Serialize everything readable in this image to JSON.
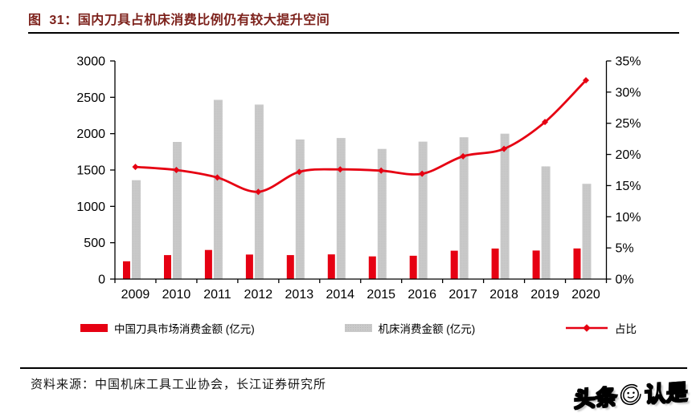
{
  "figure": {
    "caption": "图  31：国内刀具占机床消费比例仍有较大提升空间",
    "source": "资料来源：中国机床工具工业协会，长江证券研究所"
  },
  "watermark": {
    "left": "头条",
    "right": "认是",
    "face_icon": "smiley-face-in-swirl"
  },
  "colors": {
    "accent_red": "#e60012",
    "bar_gray": "#c9c9c9",
    "caption_red": "#7d221c",
    "axis": "#000000"
  },
  "chart_data": {
    "type": "bar",
    "subtype": "clustered-bars-with-line",
    "title": "国内刀具占机床消费比例仍有较大提升空间",
    "categories": [
      "2009",
      "2010",
      "2011",
      "2012",
      "2013",
      "2014",
      "2015",
      "2016",
      "2017",
      "2018",
      "2019",
      "2020"
    ],
    "series": [
      {
        "name": "中国刀具市场消费金额 (亿元)",
        "type": "bar",
        "axis": "left",
        "color": "#e60012",
        "values": [
          245,
          330,
          400,
          337,
          330,
          340,
          312,
          321,
          390,
          420,
          393,
          421
        ]
      },
      {
        "name": "机床消费金额 (亿元)",
        "type": "bar",
        "axis": "left",
        "color": "#c9c9c9",
        "values": [
          1360,
          1886,
          2465,
          2400,
          1920,
          1940,
          1790,
          1890,
          1950,
          2000,
          1550,
          1310
        ]
      },
      {
        "name": "占比",
        "type": "line",
        "axis": "right",
        "color": "#e60012",
        "marker": "diamond",
        "values": [
          18.0,
          17.5,
          16.3,
          14.0,
          17.2,
          17.6,
          17.4,
          16.9,
          19.7,
          20.9,
          25.2,
          31.9
        ]
      }
    ],
    "left_axis": {
      "min": 0,
      "max": 3000,
      "step": 500,
      "tick_labels": [
        "0",
        "500",
        "1000",
        "1500",
        "2000",
        "2500",
        "3000"
      ]
    },
    "right_axis": {
      "min": 0,
      "max": 35,
      "step": 5,
      "unit": "%",
      "tick_labels": [
        "0%",
        "5%",
        "10%",
        "15%",
        "20%",
        "25%",
        "30%",
        "35%"
      ]
    },
    "grid": false,
    "legend_position": "bottom"
  }
}
